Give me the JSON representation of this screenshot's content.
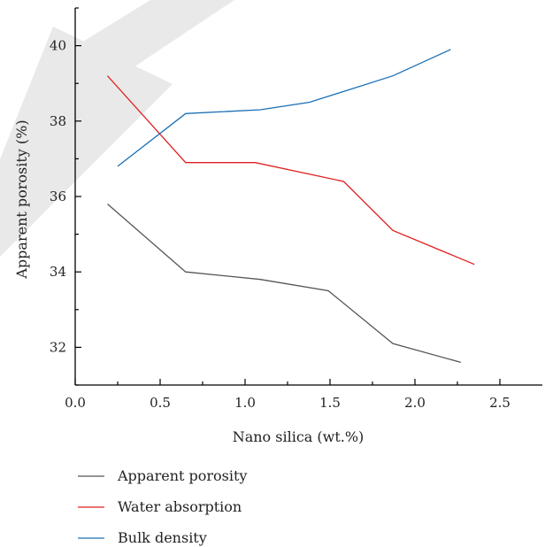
{
  "chart_data": {
    "type": "line",
    "xlabel": "Nano silica (wt.%)",
    "ylabel": "Apparent porosity (%)",
    "xlim": [
      0.0,
      2.75
    ],
    "ylim": [
      31.0,
      41.0
    ],
    "xticks": [
      "0.0",
      "0.5",
      "1.0",
      "1.5",
      "2.0",
      "2.5"
    ],
    "yticks": [
      "32",
      "34",
      "36",
      "38",
      "40"
    ],
    "legend_position": "bottom-left (below plot)",
    "series": [
      {
        "name": "Apparent porosity",
        "color": "#555555",
        "x": [
          0.19,
          0.65,
          1.09,
          1.49,
          1.87,
          2.27
        ],
        "y": [
          35.8,
          34.0,
          33.8,
          33.5,
          32.1,
          31.6
        ]
      },
      {
        "name": "Water absorption",
        "color": "#e02020",
        "x": [
          0.19,
          0.65,
          1.06,
          1.58,
          1.87,
          2.35
        ],
        "y": [
          39.2,
          36.9,
          36.9,
          36.4,
          35.1,
          34.2
        ]
      },
      {
        "name": "Bulk density",
        "color": "#1a6fb5",
        "x": [
          0.25,
          0.65,
          1.09,
          1.38,
          1.87,
          2.21
        ],
        "y": [
          36.8,
          38.2,
          38.3,
          38.5,
          39.2,
          39.9
        ]
      }
    ]
  }
}
